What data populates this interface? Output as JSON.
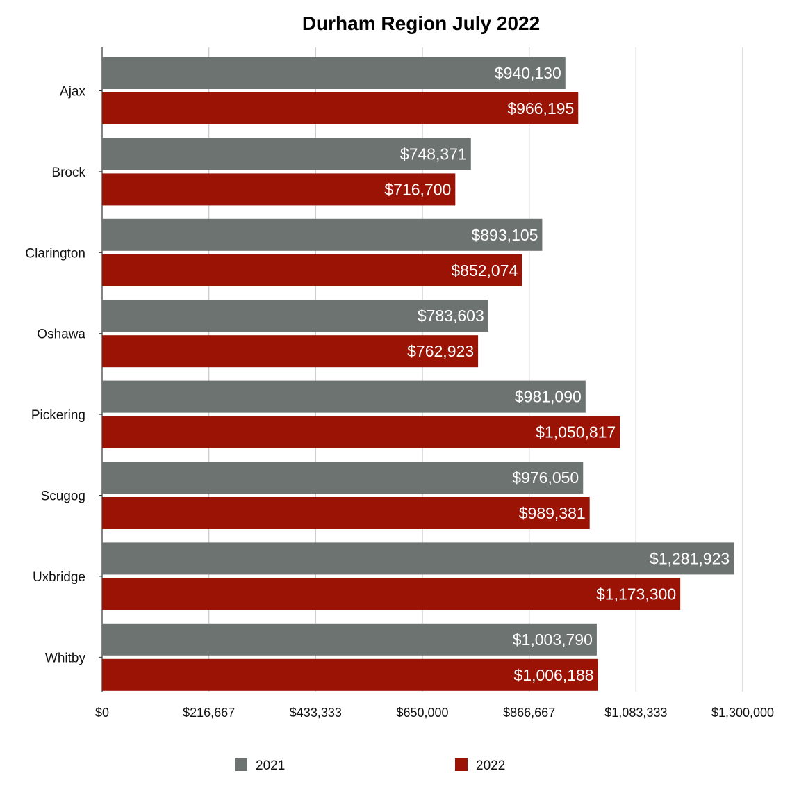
{
  "chart_data": {
    "type": "bar",
    "orientation": "horizontal",
    "title": "Durham Region July 2022",
    "xlabel": "",
    "ylabel": "",
    "categories": [
      "Ajax",
      "Brock",
      "Clarington",
      "Oshawa",
      "Pickering",
      "Scugog",
      "Uxbridge",
      "Whitby"
    ],
    "series": [
      {
        "name": "2021",
        "color": "#6d7370",
        "values": [
          940130,
          748371,
          893105,
          783603,
          981090,
          976050,
          1281923,
          1003790
        ],
        "labels": [
          "$940,130",
          "$748,371",
          "$893,105",
          "$783,603",
          "$981,090",
          "$976,050",
          "$1,281,923",
          "$1,003,790"
        ]
      },
      {
        "name": "2022",
        "color": "#9a1305",
        "values": [
          966195,
          716700,
          852074,
          762923,
          1050817,
          989381,
          1173300,
          1006188
        ],
        "labels": [
          "$966,195",
          "$716,700",
          "$852,074",
          "$762,923",
          "$1,050,817",
          "$989,381",
          "$1,173,300",
          "$1,006,188"
        ]
      }
    ],
    "xlim": [
      0,
      1300000
    ],
    "ticks": [
      0,
      216667,
      433333,
      650000,
      866667,
      1083333,
      1300000
    ],
    "tick_labels": [
      "$0",
      "$216,667",
      "$433,333",
      "$650,000",
      "$866,667",
      "$1,083,333",
      "$1,300,000"
    ],
    "grid": true,
    "legend_position": "bottom"
  }
}
